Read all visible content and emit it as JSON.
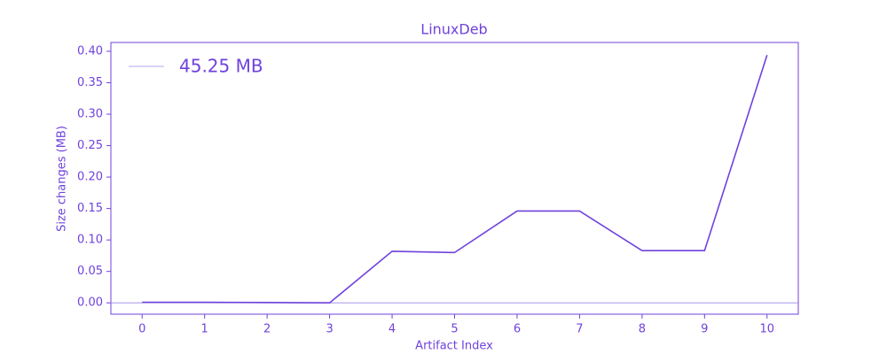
{
  "chart_data": {
    "type": "line",
    "title": "LinuxDeb",
    "x_label": "Artifact Index",
    "y_label": "Size changes (MB)",
    "x": [
      0,
      1,
      2,
      3,
      4,
      5,
      6,
      7,
      8,
      9,
      10
    ],
    "series": [
      {
        "name": "45.25 MB",
        "color": "#6f42dc",
        "values": [
          0.001,
          0.001,
          0.0005,
          0,
          0.082,
          0.08,
          0.146,
          0.146,
          0.083,
          0.083,
          0.394
        ]
      }
    ],
    "reference_line": {
      "value": 0,
      "color": "#9a86e8"
    },
    "xlim": [
      -0.5,
      10.5
    ],
    "ylim": [
      -0.018,
      0.414
    ],
    "xticks": [
      0,
      1,
      2,
      3,
      4,
      5,
      6,
      7,
      8,
      9,
      10
    ],
    "yticks": [
      {
        "value": 0,
        "label": "0.00"
      },
      {
        "value": 0.05,
        "label": "0.05"
      },
      {
        "value": 0.1,
        "label": "0.10"
      },
      {
        "value": 0.15,
        "label": "0.15"
      },
      {
        "value": 0.2,
        "label": "0.20"
      },
      {
        "value": 0.25,
        "label": "0.25"
      },
      {
        "value": 0.3,
        "label": "0.30"
      },
      {
        "value": 0.35,
        "label": "0.35"
      },
      {
        "value": 0.4,
        "label": "0.40"
      }
    ],
    "legend": "upper left",
    "grid": false
  }
}
